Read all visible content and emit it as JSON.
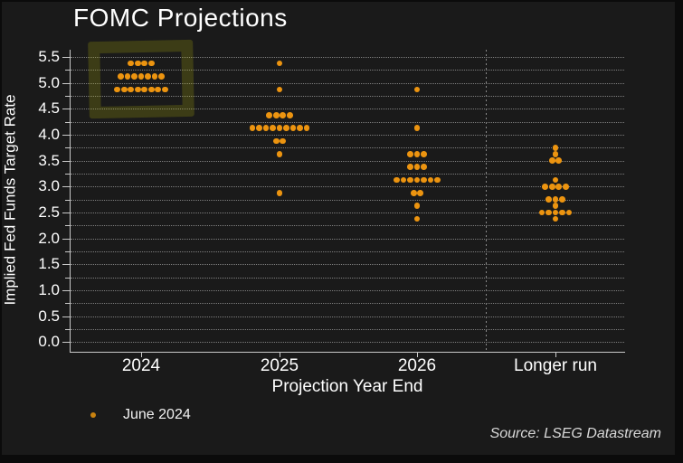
{
  "chart_data": {
    "type": "scatter",
    "subtype": "fomc-dot-plot",
    "title": "FOMC Projections",
    "xlabel": "Projection Year End",
    "ylabel": "Implied Fed Funds Target Rate",
    "ylim": [
      0.0,
      5.5
    ],
    "ytick_step": 0.5,
    "yminor_step": 0.25,
    "grid": "horizontal dotted lines every 0.25",
    "legend_position": "bottom-left",
    "dot_color": "#ec9410",
    "categories": [
      "2024",
      "2025",
      "2026",
      "Longer run"
    ],
    "separator_before_category": "Longer run",
    "series": [
      {
        "name": "June 2024",
        "columns": [
          {
            "category": "2024",
            "dots": [
              {
                "rate": 5.375,
                "count": 4
              },
              {
                "rate": 5.125,
                "count": 7
              },
              {
                "rate": 4.875,
                "count": 8
              }
            ]
          },
          {
            "category": "2025",
            "dots": [
              {
                "rate": 5.375,
                "count": 1
              },
              {
                "rate": 4.875,
                "count": 1
              },
              {
                "rate": 4.375,
                "count": 4
              },
              {
                "rate": 4.125,
                "count": 9
              },
              {
                "rate": 3.875,
                "count": 2
              },
              {
                "rate": 3.625,
                "count": 1
              },
              {
                "rate": 2.875,
                "count": 1
              }
            ]
          },
          {
            "category": "2026",
            "dots": [
              {
                "rate": 4.875,
                "count": 1
              },
              {
                "rate": 4.125,
                "count": 1
              },
              {
                "rate": 3.625,
                "count": 3
              },
              {
                "rate": 3.375,
                "count": 3
              },
              {
                "rate": 3.125,
                "count": 7
              },
              {
                "rate": 2.875,
                "count": 2
              },
              {
                "rate": 2.625,
                "count": 1
              },
              {
                "rate": 2.375,
                "count": 1
              }
            ]
          },
          {
            "category": "Longer run",
            "dots": [
              {
                "rate": 3.75,
                "count": 1
              },
              {
                "rate": 3.625,
                "count": 1
              },
              {
                "rate": 3.5,
                "count": 2
              },
              {
                "rate": 3.125,
                "count": 1
              },
              {
                "rate": 3.0,
                "count": 4
              },
              {
                "rate": 2.75,
                "count": 3
              },
              {
                "rate": 2.625,
                "count": 1
              },
              {
                "rate": 2.5,
                "count": 5
              },
              {
                "rate": 2.375,
                "count": 1
              }
            ]
          }
        ]
      }
    ],
    "annotation": {
      "type": "highlight-box",
      "category": "2024",
      "rate_range": [
        4.75,
        5.5
      ],
      "color": "#c8c60a"
    }
  },
  "legend": {
    "items": [
      {
        "label": "June 2024",
        "color": "#ec9410"
      }
    ]
  },
  "source": "Source: LSEG Datastream"
}
